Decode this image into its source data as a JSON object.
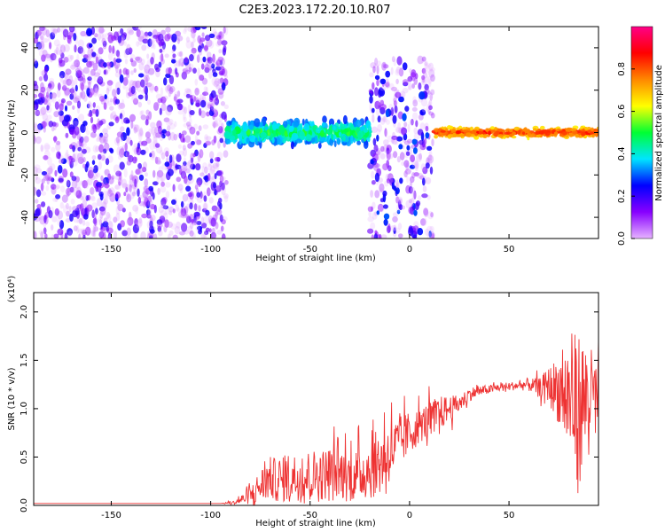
{
  "figure": {
    "title": "C2E3.2023.172.20.10.R07"
  },
  "chart_data": [
    {
      "type": "heatmap",
      "xlabel": "Height of straight line (km)",
      "ylabel": "Frequency (Hz)",
      "xlim": [
        -189,
        95
      ],
      "ylim": [
        -50,
        50
      ],
      "xticks": [
        -150,
        -100,
        -50,
        0,
        50
      ],
      "yticks": [
        -40,
        -20,
        0,
        20,
        40
      ],
      "grid": false,
      "colorbar": {
        "label": "Normalized spectral amplitude",
        "range": [
          0,
          1
        ],
        "ticks": [
          "0.0",
          "0.2",
          "0.4",
          "0.6",
          "0.8"
        ],
        "colormap": [
          "#e6b3ff",
          "#8800ff",
          "#0000ff",
          "#00e5ff",
          "#00ff33",
          "#ffff00",
          "#ff8800",
          "#ff0000",
          "#ff0088"
        ]
      },
      "regions": [
        {
          "x": [
            -189,
            -92
          ],
          "freq_range": [
            -50,
            50
          ],
          "amplitude": [
            0.0,
            0.25
          ],
          "pattern": "noise"
        },
        {
          "x": [
            -92,
            -20
          ],
          "freq_range": [
            -8,
            8
          ],
          "amplitude": [
            0.2,
            0.55
          ],
          "pattern": "broadening"
        },
        {
          "x": [
            -20,
            12
          ],
          "freq_range": [
            -50,
            35
          ],
          "amplitude": [
            0.0,
            0.3
          ],
          "pattern": "scatter"
        },
        {
          "x": [
            12,
            95
          ],
          "freq_range": [
            -3,
            3
          ],
          "amplitude": [
            0.6,
            0.9
          ],
          "pattern": "strong-line"
        }
      ]
    },
    {
      "type": "line",
      "xlabel": "Height of straight line (km)",
      "ylabel": "SNR (10 * v/v)",
      "y_multiplier": "(x10⁴)",
      "xlim": [
        -189,
        95
      ],
      "ylim": [
        0,
        2.2
      ],
      "xticks": [
        -150,
        -100,
        -50,
        0,
        50
      ],
      "yticks": [
        "0.0",
        "0.5",
        "1.0",
        "1.5",
        "2.0"
      ],
      "grid": false,
      "color": "#ee3333",
      "series": [
        {
          "x": [
            -189,
            -170,
            -150,
            -130,
            -110,
            -95,
            -88,
            -80,
            -75,
            -70,
            -65,
            -60,
            -55,
            -50,
            -45,
            -40,
            -35,
            -30,
            -25,
            -20,
            -15,
            -10,
            -5,
            0,
            5,
            10,
            15,
            20,
            25,
            30,
            35,
            40,
            45,
            50,
            55,
            60,
            65,
            70,
            75,
            80,
            85,
            90,
            95
          ],
          "values": [
            0.02,
            0.02,
            0.02,
            0.02,
            0.02,
            0.02,
            0.03,
            0.1,
            0.2,
            0.28,
            0.25,
            0.3,
            0.28,
            0.32,
            0.3,
            0.35,
            0.33,
            0.3,
            0.32,
            0.38,
            0.45,
            0.55,
            0.65,
            0.75,
            0.82,
            0.9,
            0.95,
            1.0,
            1.05,
            1.15,
            1.18,
            1.2,
            1.22,
            1.23,
            1.24,
            1.25,
            1.22,
            1.25,
            1.2,
            1.1,
            1.0,
            1.15,
            1.1
          ],
          "noise_amplitude": [
            0.0,
            0.0,
            0.0,
            0.0,
            0.0,
            0.0,
            0.02,
            0.1,
            0.2,
            0.25,
            0.25,
            0.3,
            0.25,
            0.3,
            0.3,
            0.3,
            0.3,
            0.3,
            0.3,
            0.35,
            0.4,
            0.35,
            0.3,
            0.25,
            0.2,
            0.2,
            0.2,
            0.15,
            0.1,
            0.08,
            0.06,
            0.05,
            0.05,
            0.05,
            0.05,
            0.08,
            0.1,
            0.2,
            0.4,
            0.7,
            0.9,
            0.6,
            0.4
          ]
        }
      ]
    }
  ]
}
